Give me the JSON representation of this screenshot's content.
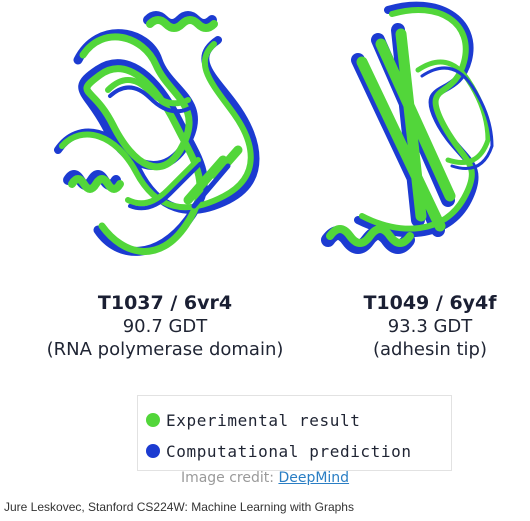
{
  "colors": {
    "experimental": "#52d63a",
    "computational": "#1c3bd1"
  },
  "structures": [
    {
      "id": "T1037 / 6vr4",
      "gdt": "90.7 GDT",
      "description": "(RNA polymerase domain)"
    },
    {
      "id": "T1049 / 6y4f",
      "gdt": "93.3 GDT",
      "description": "(adhesin tip)"
    }
  ],
  "legend": {
    "experimental_label": "Experimental result",
    "computational_label": "Computational prediction"
  },
  "credit": {
    "prefix": "Image credit: ",
    "link_text": "DeepMind"
  },
  "footer": {
    "text": "Jure Leskovec, Stanford CS224W: Machine Learning with Graphs"
  }
}
